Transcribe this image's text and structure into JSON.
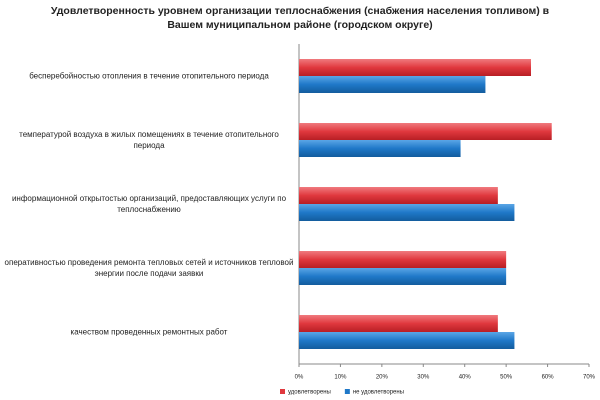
{
  "chart_data": {
    "type": "bar",
    "orientation": "horizontal",
    "title": "Удовлетворенность уровнем организации теплоснабжения (снабжения населения топливом) в Вашем муниципальном районе (городском округе)",
    "categories": [
      "бесперебойностью отопления в течение отопительного периода",
      "температурой воздуха в жилых помещениях в течение отопительного периода",
      "информационной открытостью организаций, предоставляющих услуги по теплоснабжению",
      "оперативностью проведения ремонта тепловых сетей и источников тепловой энергии после подачи заявки",
      "качеством проведенных ремонтных работ"
    ],
    "series": [
      {
        "name": "удовлетворены",
        "color": "#e0383e",
        "values": [
          56,
          61,
          48,
          50,
          48
        ]
      },
      {
        "name": "не удовлетворены",
        "color": "#1f78c8",
        "values": [
          45,
          39,
          52,
          50,
          52
        ]
      }
    ],
    "xlim": [
      0,
      70
    ],
    "xticks": [
      {
        "value": 0,
        "label": "0%"
      },
      {
        "value": 10,
        "label": "10%"
      },
      {
        "value": 20,
        "label": "20%"
      },
      {
        "value": 30,
        "label": "30%"
      },
      {
        "value": 40,
        "label": "40%"
      },
      {
        "value": 50,
        "label": "50%"
      },
      {
        "value": 60,
        "label": "60%"
      },
      {
        "value": 70,
        "label": "70%"
      }
    ],
    "grid": false,
    "legend": "bottom"
  }
}
